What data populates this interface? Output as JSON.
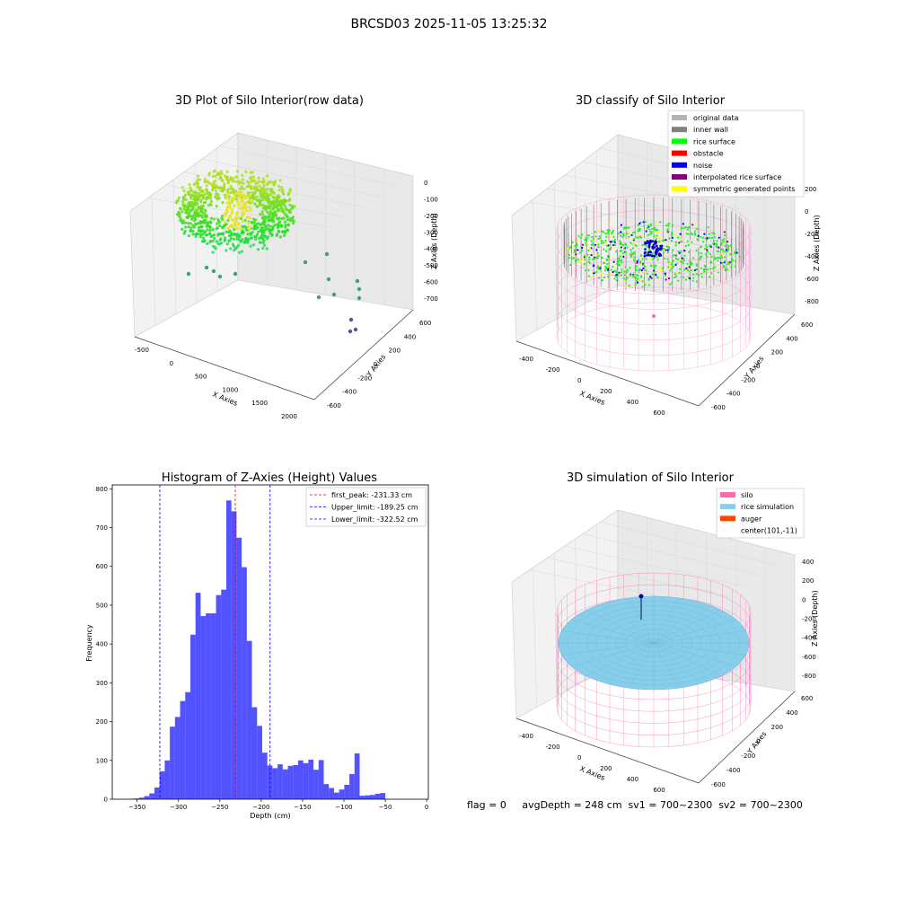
{
  "suptitle": "BRCSD03 2025-11-05 13:25:32",
  "panel1": {
    "title": "3D Plot of Silo Interior(row data)",
    "xlabel": "X Axies",
    "ylabel": "Y Axies",
    "zlabel": "Z Axies (Depth)",
    "xticks": [
      "-500",
      "0",
      "500",
      "1000",
      "1500",
      "2000"
    ],
    "yticks": [
      "600",
      "400",
      "200",
      "0",
      "-200",
      "-400",
      "-600"
    ],
    "zticks": [
      "0",
      "-100",
      "-200",
      "-300",
      "-400",
      "-500",
      "-600",
      "-700"
    ]
  },
  "panel2": {
    "title": "3D classify of Silo Interior",
    "xlabel": "X Axies",
    "ylabel": "Y Axies",
    "zlabel": "Z Axies (Depth)",
    "xticks": [
      "-400",
      "-200",
      "0",
      "200",
      "400",
      "600"
    ],
    "yticks": [
      "600",
      "400",
      "200",
      "0",
      "-200",
      "-400",
      "-600"
    ],
    "zticks": [
      "200",
      "0",
      "-200",
      "-400",
      "-600",
      "-800"
    ],
    "legend": [
      {
        "label": "original data",
        "color": "#b3b3b3"
      },
      {
        "label": "inner wall",
        "color": "#808080"
      },
      {
        "label": "rice surface",
        "color": "#00ff00"
      },
      {
        "label": "obstacle",
        "color": "#ff0000"
      },
      {
        "label": "noise",
        "color": "#0000ff"
      },
      {
        "label": "interpolated rice surface",
        "color": "#800080"
      },
      {
        "label": "symmetric generated points",
        "color": "#ffff00"
      }
    ]
  },
  "panel4": {
    "title": "3D simulation of Silo Interior",
    "xlabel": "X Axies",
    "ylabel": "Y Axies",
    "zlabel": "Z Axies (Depth)",
    "xticks": [
      "-400",
      "-200",
      "0",
      "200",
      "400",
      "600"
    ],
    "yticks": [
      "600",
      "400",
      "200",
      "0",
      "-200",
      "-400",
      "-600"
    ],
    "zticks": [
      "400",
      "200",
      "0",
      "-200",
      "-400",
      "-600",
      "-800"
    ],
    "legend": [
      {
        "label": "silo",
        "color": "#ff69b4"
      },
      {
        "label": "rice simulation",
        "color": "#87ceeb"
      },
      {
        "label": "auger",
        "color": "#ff4500"
      },
      {
        "label": "center(101,-11)",
        "color": ""
      }
    ]
  },
  "status": "flag = 0     avgDepth = 248 cm  sv1 = 700~2300  sv2 = 700~2300",
  "chart_data": {
    "type": "bar",
    "title": "Histogram of Z-Axies (Height) Values",
    "xlabel": "Depth (cm)",
    "ylabel": "Frequency",
    "xlim": [
      -380,
      2
    ],
    "ylim": [
      0,
      810
    ],
    "xticks": [
      -350,
      -300,
      -250,
      -200,
      -150,
      -100,
      -50,
      0
    ],
    "yticks": [
      0,
      100,
      200,
      300,
      400,
      500,
      600,
      700,
      800
    ],
    "bar_color": "#0000ff",
    "bin_width": 6.2,
    "bins": [
      {
        "x": -360.0,
        "y": 1
      },
      {
        "x": -353.8,
        "y": 2
      },
      {
        "x": -347.6,
        "y": 4
      },
      {
        "x": -341.4,
        "y": 8
      },
      {
        "x": -335.2,
        "y": 15
      },
      {
        "x": -329.0,
        "y": 30
      },
      {
        "x": -322.8,
        "y": 72
      },
      {
        "x": -316.6,
        "y": 100
      },
      {
        "x": -310.4,
        "y": 187
      },
      {
        "x": -304.2,
        "y": 212
      },
      {
        "x": -298.0,
        "y": 253
      },
      {
        "x": -291.8,
        "y": 276
      },
      {
        "x": -285.6,
        "y": 424
      },
      {
        "x": -279.4,
        "y": 532
      },
      {
        "x": -273.2,
        "y": 472
      },
      {
        "x": -267.0,
        "y": 479
      },
      {
        "x": -260.8,
        "y": 479
      },
      {
        "x": -254.6,
        "y": 526
      },
      {
        "x": -248.4,
        "y": 540
      },
      {
        "x": -242.2,
        "y": 770
      },
      {
        "x": -236.0,
        "y": 742
      },
      {
        "x": -229.8,
        "y": 674
      },
      {
        "x": -223.6,
        "y": 598
      },
      {
        "x": -217.4,
        "y": 408
      },
      {
        "x": -211.2,
        "y": 237
      },
      {
        "x": -205.0,
        "y": 189
      },
      {
        "x": -198.8,
        "y": 120
      },
      {
        "x": -192.6,
        "y": 87
      },
      {
        "x": -186.4,
        "y": 80
      },
      {
        "x": -180.2,
        "y": 90
      },
      {
        "x": -174.0,
        "y": 77
      },
      {
        "x": -167.8,
        "y": 86
      },
      {
        "x": -161.6,
        "y": 88
      },
      {
        "x": -155.4,
        "y": 100
      },
      {
        "x": -149.2,
        "y": 93
      },
      {
        "x": -143.0,
        "y": 102
      },
      {
        "x": -136.8,
        "y": 76
      },
      {
        "x": -130.6,
        "y": 101
      },
      {
        "x": -124.4,
        "y": 39
      },
      {
        "x": -118.2,
        "y": 29
      },
      {
        "x": -112.0,
        "y": 17
      },
      {
        "x": -105.8,
        "y": 25
      },
      {
        "x": -99.6,
        "y": 37
      },
      {
        "x": -93.4,
        "y": 65
      },
      {
        "x": -87.2,
        "y": 118
      },
      {
        "x": -81.0,
        "y": 9
      },
      {
        "x": -74.8,
        "y": 10
      },
      {
        "x": -68.6,
        "y": 11
      },
      {
        "x": -62.4,
        "y": 14
      },
      {
        "x": -56.2,
        "y": 16
      }
    ],
    "vlines": [
      {
        "x": -231.33,
        "color": "#ff0000",
        "label": "first_peak: -231.33 cm"
      },
      {
        "x": -189.25,
        "color": "#0000ff",
        "label": "Upper_limit: -189.25 cm"
      },
      {
        "x": -322.52,
        "color": "#0000ff",
        "label": "Lower_limit: -322.52 cm"
      }
    ],
    "legend_position": "upper right"
  }
}
